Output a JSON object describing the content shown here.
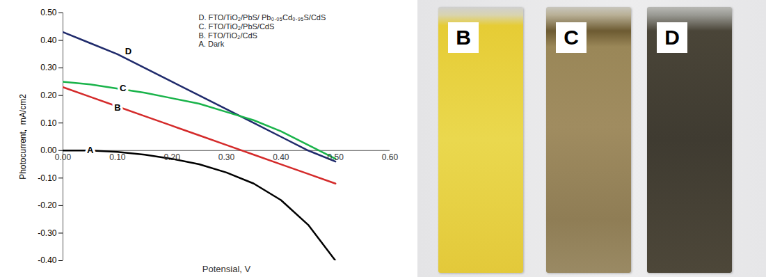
{
  "chart_data": {
    "type": "line",
    "x_label": "Potensial, V",
    "y_label": "Photocurrent,  mA/cm2",
    "x": [
      0,
      0.05,
      0.1,
      0.15,
      0.2,
      0.25,
      0.3,
      0.35,
      0.4,
      0.45,
      0.5
    ],
    "series": [
      {
        "name": "D. FTO/TiO₂/PbS/ Pb₀.₀₅Cd₀.₉₅S/CdS",
        "color": "#1f2a6b",
        "values": [
          0.43,
          0.39,
          0.35,
          0.3,
          0.25,
          0.2,
          0.15,
          0.1,
          0.05,
          0.0,
          -0.04
        ]
      },
      {
        "name": "C. FTO/TiO₂/PbS/CdS",
        "color": "#19b34a",
        "values": [
          0.25,
          0.24,
          0.225,
          0.21,
          0.19,
          0.17,
          0.14,
          0.11,
          0.07,
          0.02,
          -0.03
        ]
      },
      {
        "name": "B. FTO/TiO₂/CdS",
        "color": "#d42a2a",
        "values": [
          0.23,
          0.195,
          0.16,
          0.125,
          0.09,
          0.055,
          0.02,
          -0.015,
          -0.05,
          -0.085,
          -0.12
        ]
      },
      {
        "name": "A. Dark",
        "color": "#000000",
        "values": [
          0,
          0,
          -0.005,
          -0.015,
          -0.03,
          -0.05,
          -0.08,
          -0.12,
          -0.18,
          -0.27,
          -0.4
        ]
      }
    ],
    "annotations": [
      {
        "text": "D",
        "x": 0.12,
        "y": 0.36
      },
      {
        "text": "C",
        "x": 0.11,
        "y": 0.225
      },
      {
        "text": "B",
        "x": 0.1,
        "y": 0.155
      },
      {
        "text": "A",
        "x": 0.05,
        "y": 0
      }
    ],
    "xlim": [
      0,
      0.6
    ],
    "xticks": [
      {
        "value": 0,
        "label": "0.00"
      },
      {
        "value": 0.1,
        "label": "0.10"
      },
      {
        "value": 0.2,
        "label": "0.20"
      },
      {
        "value": 0.3,
        "label": "0.30"
      },
      {
        "value": 0.4,
        "label": "0.40"
      },
      {
        "value": 0.5,
        "label": "0.50"
      },
      {
        "value": 0.6,
        "label": "0.60"
      }
    ],
    "ylim": [
      -0.4,
      0.5
    ],
    "yticks": [
      {
        "value": -0.4,
        "label": "-0.40"
      },
      {
        "value": -0.3,
        "label": "-0.30"
      },
      {
        "value": -0.2,
        "label": "-0.20"
      },
      {
        "value": -0.1,
        "label": "-0.10"
      },
      {
        "value": 0,
        "label": "0.00"
      },
      {
        "value": 0.1,
        "label": "0.10"
      },
      {
        "value": 0.2,
        "label": "0.20"
      },
      {
        "value": 0.3,
        "label": "0.30"
      },
      {
        "value": 0.4,
        "label": "0.40"
      },
      {
        "value": 0.5,
        "label": "0.50"
      }
    ],
    "grid": false,
    "legend": "top-right"
  },
  "photo": {
    "labels": [
      "B",
      "C",
      "D"
    ]
  }
}
